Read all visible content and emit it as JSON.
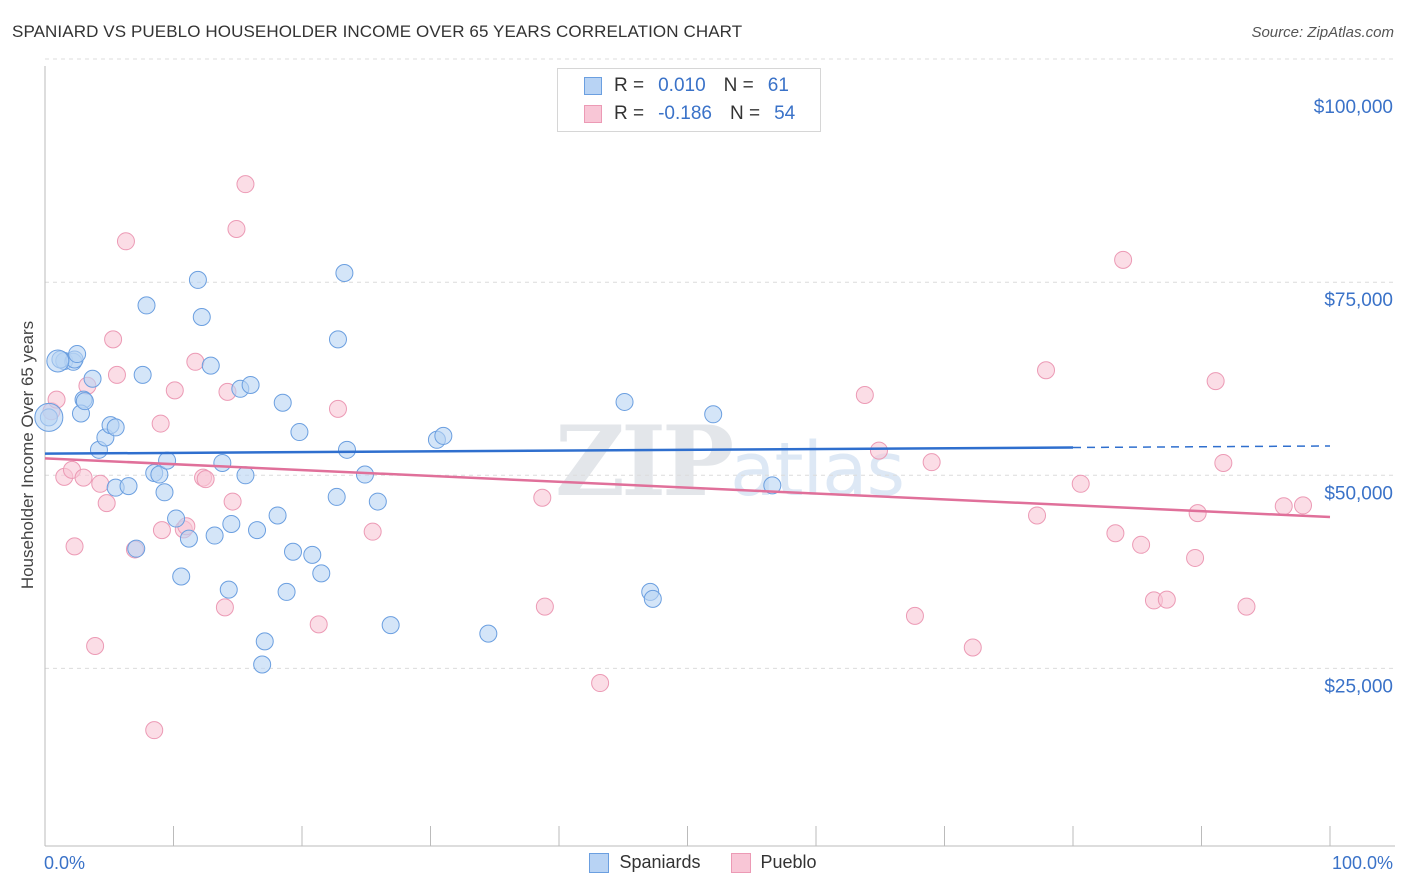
{
  "header": {
    "title": "SPANIARD VS PUEBLO HOUSEHOLDER INCOME OVER 65 YEARS CORRELATION CHART",
    "source": "Source: ZipAtlas.com"
  },
  "watermark": {
    "main": "ZIP",
    "sub": "atlas"
  },
  "legend": {
    "rows": [
      {
        "r_label": "R =",
        "r_value": "0.010",
        "n_label": "N =",
        "n_value": "61",
        "color": "#6b9fe0",
        "fill": "#b8d3f4"
      },
      {
        "r_label": "R =",
        "r_value": "-0.186",
        "n_label": "N =",
        "n_value": "54",
        "color": "#ec9ab5",
        "fill": "#f8c6d6"
      }
    ]
  },
  "bottom_legend": [
    {
      "label": "Spaniards",
      "color": "#6b9fe0",
      "fill": "#b8d3f4"
    },
    {
      "label": "Pueblo",
      "color": "#ec9ab5",
      "fill": "#f8c6d6"
    }
  ],
  "chart_data": {
    "type": "scatter",
    "title": "SPANIARD VS PUEBLO HOUSEHOLDER INCOME OVER 65 YEARS CORRELATION CHART",
    "xlabel": "",
    "ylabel": "Householder Income Over 65 years",
    "xlim": [
      0,
      100
    ],
    "ylim": [
      2000,
      103000
    ],
    "x_tick_labels": [
      "0.0%",
      "100.0%"
    ],
    "y_ticks": [
      25000,
      50000,
      75000,
      100000
    ],
    "y_tick_labels": [
      "$25,000",
      "$50,000",
      "$75,000",
      "$100,000"
    ],
    "grid": true,
    "series": [
      {
        "name": "Spaniards",
        "color": "#6b9fe0",
        "fill": "#b8d3f4",
        "trend": {
          "x": [
            0,
            80
          ],
          "y": [
            52800,
            53600
          ],
          "dashed_to": [
            100,
            53800
          ]
        },
        "points": [
          [
            0.3,
            57500
          ],
          [
            1.5,
            64800
          ],
          [
            2.2,
            64700
          ],
          [
            2.3,
            65000
          ],
          [
            2.5,
            65700
          ],
          [
            3.0,
            59800
          ],
          [
            2.8,
            58000
          ],
          [
            3.1,
            59600
          ],
          [
            3.7,
            62500
          ],
          [
            4.2,
            53300
          ],
          [
            4.7,
            54900
          ],
          [
            5.1,
            56500
          ],
          [
            5.5,
            56200
          ],
          [
            5.5,
            48400
          ],
          [
            6.5,
            48600
          ],
          [
            7.1,
            40500
          ],
          [
            7.6,
            63000
          ],
          [
            7.9,
            72000
          ],
          [
            8.5,
            50300
          ],
          [
            8.9,
            50100
          ],
          [
            9.3,
            47800
          ],
          [
            9.5,
            51900
          ],
          [
            10.2,
            44400
          ],
          [
            10.6,
            36900
          ],
          [
            11.2,
            41800
          ],
          [
            11.9,
            75300
          ],
          [
            12.2,
            70500
          ],
          [
            12.9,
            64200
          ],
          [
            13.2,
            42200
          ],
          [
            13.8,
            51600
          ],
          [
            14.3,
            35200
          ],
          [
            14.5,
            43700
          ],
          [
            15.2,
            61200
          ],
          [
            15.6,
            50000
          ],
          [
            16.0,
            61700
          ],
          [
            16.5,
            42900
          ],
          [
            17.1,
            28500
          ],
          [
            16.9,
            25500
          ],
          [
            18.1,
            44800
          ],
          [
            18.5,
            59400
          ],
          [
            18.8,
            34900
          ],
          [
            19.3,
            40100
          ],
          [
            19.8,
            55600
          ],
          [
            20.8,
            39700
          ],
          [
            21.5,
            37300
          ],
          [
            22.7,
            47200
          ],
          [
            22.8,
            67600
          ],
          [
            23.3,
            76200
          ],
          [
            23.5,
            53300
          ],
          [
            24.9,
            50100
          ],
          [
            25.9,
            46600
          ],
          [
            26.9,
            30600
          ],
          [
            30.5,
            54600
          ],
          [
            31.0,
            55100
          ],
          [
            34.5,
            29500
          ],
          [
            45.1,
            59500
          ],
          [
            47.1,
            34900
          ],
          [
            47.3,
            34000
          ],
          [
            52.0,
            57900
          ],
          [
            56.6,
            48700
          ],
          [
            1.2,
            65000
          ]
        ],
        "big_points": [
          [
            0.3,
            57500,
            14
          ],
          [
            1.0,
            64800,
            11
          ]
        ]
      },
      {
        "name": "Pueblo",
        "color": "#ec9ab5",
        "fill": "#f8c6d6",
        "trend": {
          "x": [
            0,
            100
          ],
          "y": [
            52200,
            44600
          ]
        },
        "points": [
          [
            0.5,
            58300
          ],
          [
            0.9,
            59800
          ],
          [
            1.5,
            49800
          ],
          [
            2.1,
            50700
          ],
          [
            2.3,
            40800
          ],
          [
            3.0,
            49700
          ],
          [
            3.3,
            61600
          ],
          [
            3.9,
            27900
          ],
          [
            4.3,
            48900
          ],
          [
            4.8,
            46400
          ],
          [
            5.3,
            67600
          ],
          [
            5.6,
            63000
          ],
          [
            6.3,
            80300
          ],
          [
            7.0,
            40400
          ],
          [
            8.5,
            17000
          ],
          [
            9.0,
            56700
          ],
          [
            9.1,
            42900
          ],
          [
            10.1,
            61000
          ],
          [
            10.8,
            43000
          ],
          [
            11.0,
            43400
          ],
          [
            11.7,
            64700
          ],
          [
            12.3,
            49700
          ],
          [
            12.5,
            49500
          ],
          [
            14.0,
            32900
          ],
          [
            14.2,
            60800
          ],
          [
            14.6,
            46600
          ],
          [
            14.9,
            81900
          ],
          [
            15.6,
            87700
          ],
          [
            21.3,
            30700
          ],
          [
            22.8,
            58600
          ],
          [
            25.5,
            42700
          ],
          [
            38.7,
            47100
          ],
          [
            38.9,
            33000
          ],
          [
            43.2,
            23100
          ],
          [
            63.8,
            60400
          ],
          [
            64.9,
            53200
          ],
          [
            67.7,
            31800
          ],
          [
            69.0,
            51700
          ],
          [
            72.2,
            27700
          ],
          [
            77.2,
            44800
          ],
          [
            77.9,
            63600
          ],
          [
            80.6,
            48900
          ],
          [
            83.3,
            42500
          ],
          [
            83.9,
            77900
          ],
          [
            85.3,
            41000
          ],
          [
            86.3,
            33800
          ],
          [
            87.3,
            33900
          ],
          [
            89.5,
            39300
          ],
          [
            89.7,
            45100
          ],
          [
            91.1,
            62200
          ],
          [
            91.7,
            51600
          ],
          [
            93.5,
            33000
          ],
          [
            96.4,
            46000
          ],
          [
            97.9,
            46100
          ]
        ]
      }
    ]
  }
}
